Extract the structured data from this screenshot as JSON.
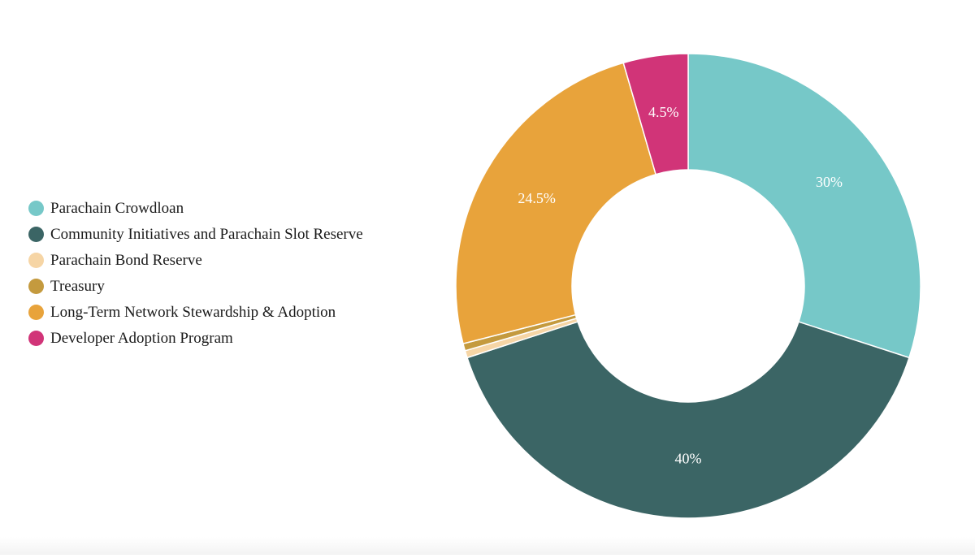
{
  "chart_data": {
    "type": "pie",
    "title": "",
    "legend_position": "left",
    "categories": [
      "Parachain Crowdloan",
      "Community Initiatives and Parachain Slot Reserve",
      "Parachain Bond Reserve",
      "Treasury",
      "Long-Term Network Stewardship & Adoption",
      "Developer Adoption Program"
    ],
    "values": [
      30,
      40,
      0.5,
      0.5,
      24.5,
      4.5
    ],
    "labels": [
      "30%",
      "40%",
      "",
      "",
      "24.5%",
      "4.5%"
    ],
    "colors": [
      "#76C8C8",
      "#3B6565",
      "#F6D5A5",
      "#C49A3E",
      "#E8A33B",
      "#D13478"
    ]
  }
}
